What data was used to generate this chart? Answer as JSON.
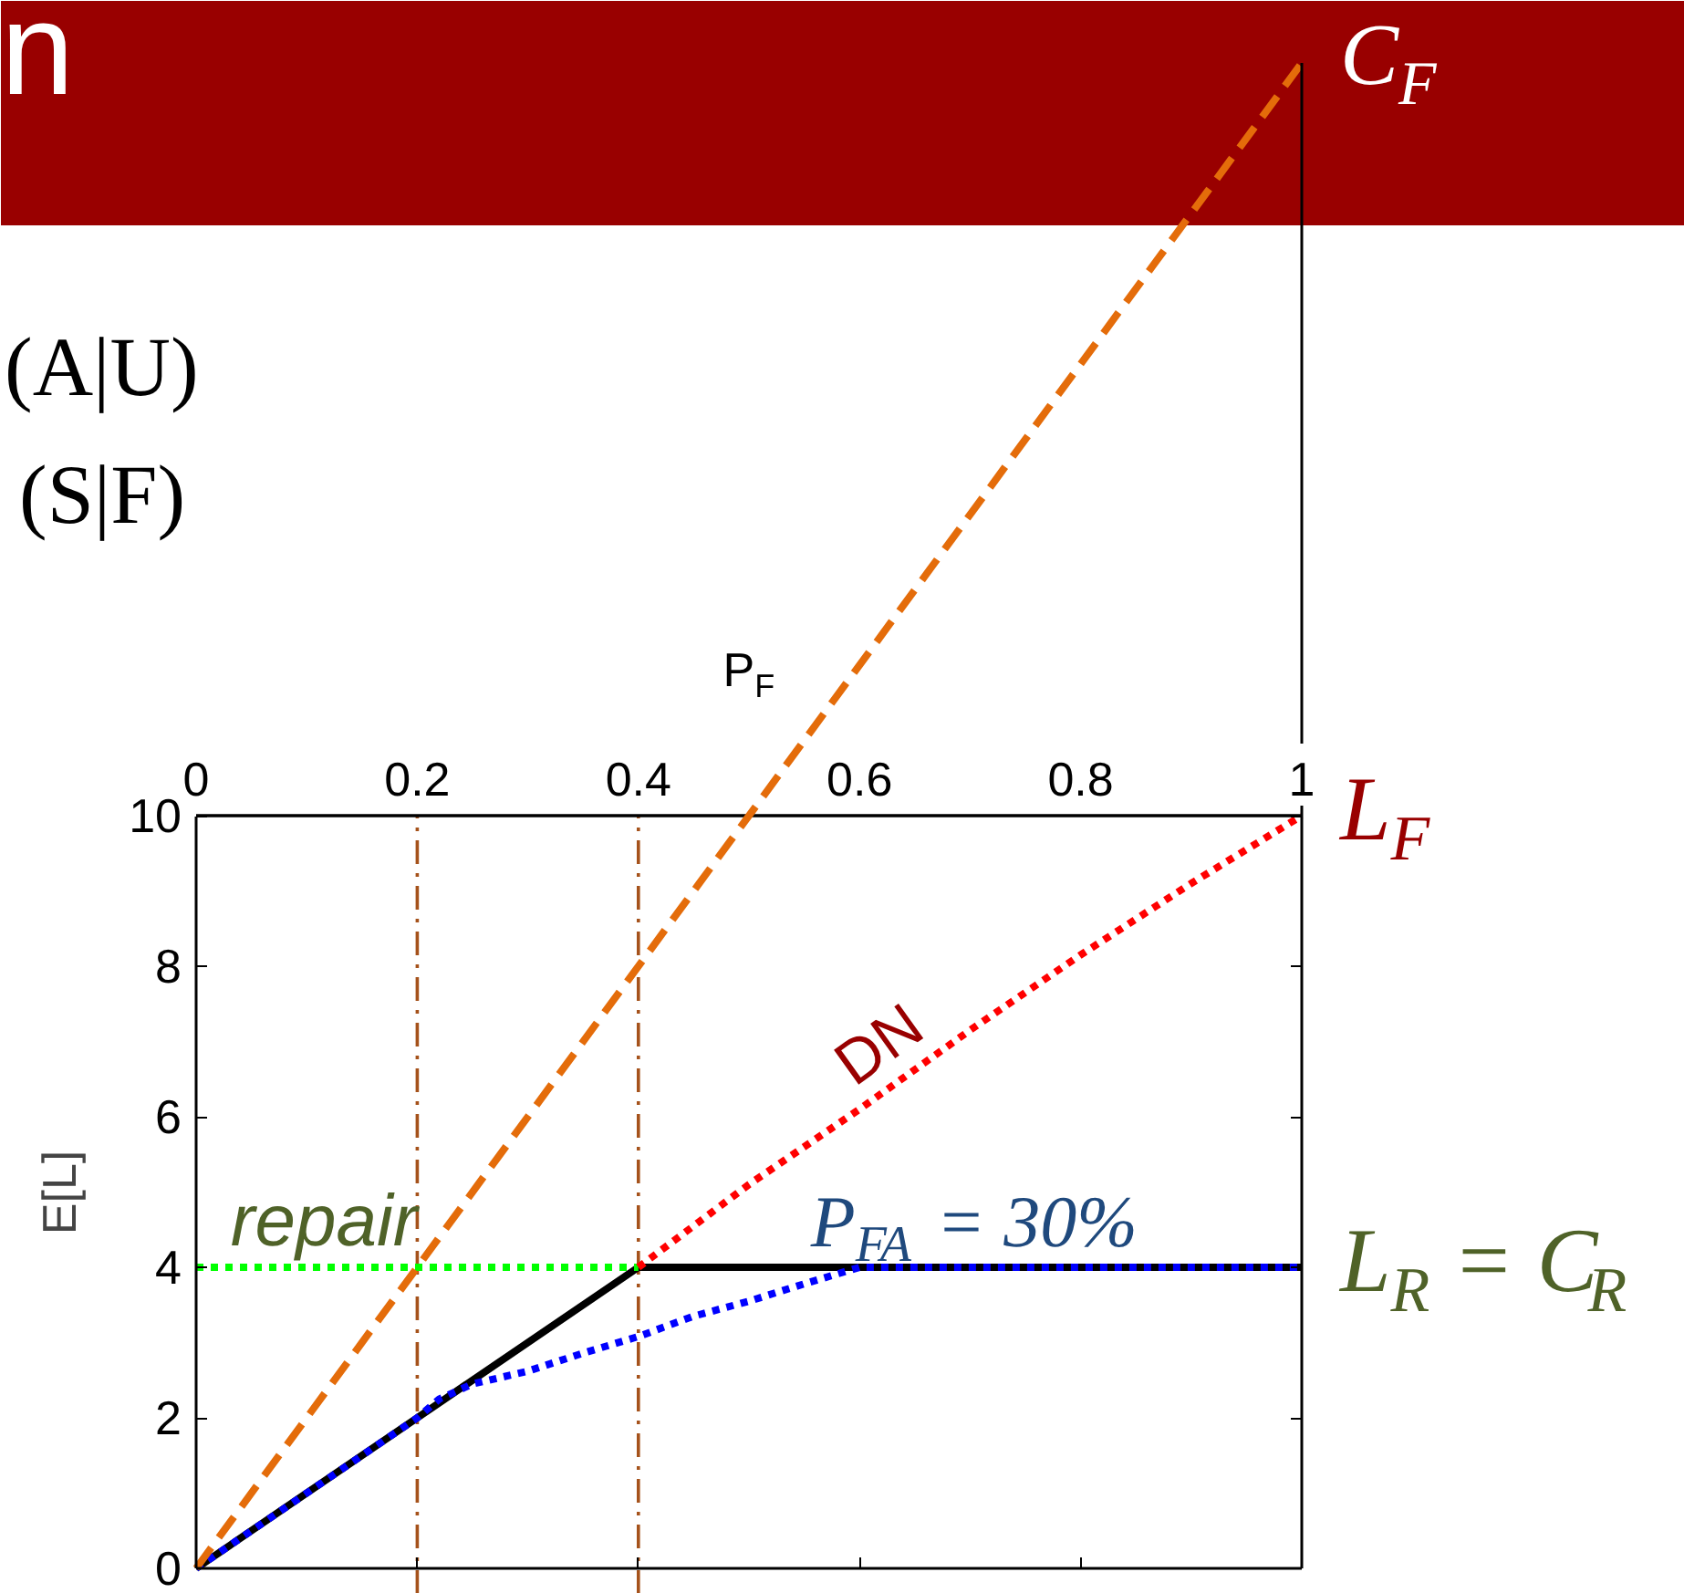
{
  "chart_data": {
    "type": "line",
    "title": "n",
    "xlabel": "P$_{F}$",
    "ylabel": "E[L]",
    "xlim": [
      0,
      1
    ],
    "ylim": [
      0,
      20
    ],
    "xticks": [
      0,
      0.2,
      0.4,
      0.6,
      0.8,
      1
    ],
    "yticks": [
      0,
      2,
      4,
      6,
      8,
      10
    ],
    "grid": false,
    "series": [
      {
        "color": "#000000",
        "line_style": "solid",
        "x": [
          0,
          0.4,
          1
        ],
        "values": [
          0,
          4,
          4
        ]
      },
      {
        "color": "#00ff00",
        "line_style": "dotted",
        "x": [
          0,
          0.4
        ],
        "values": [
          4,
          4
        ]
      },
      {
        "color": "#ff0000",
        "line_style": "dotted",
        "x": [
          0.4,
          0.5,
          0.6,
          0.7,
          0.8,
          0.9,
          1
        ],
        "values": [
          4,
          5.1,
          6.1,
          7.15,
          8.15,
          9.1,
          10
        ]
      },
      {
        "color": "#0000ff",
        "line_style": "dotted",
        "x": [
          0,
          0.2,
          0.22,
          0.25,
          0.3,
          0.35,
          0.4,
          0.45,
          0.5,
          0.55,
          0.6,
          1
        ],
        "values": [
          0,
          2,
          2.25,
          2.45,
          2.62,
          2.86,
          3.08,
          3.35,
          3.55,
          3.78,
          4,
          4
        ]
      },
      {
        "color": "#e46c0a",
        "line_style": "dashed",
        "x": [
          0,
          1
        ],
        "values": [
          0,
          20
        ]
      }
    ],
    "ref_lines": [
      {
        "axis": "x",
        "value": 0.2,
        "color": "#a5521b",
        "line_style": "dashdot"
      },
      {
        "axis": "x",
        "value": 0.4,
        "color": "#a5521b",
        "line_style": "dashdot"
      },
      {
        "axis": "y",
        "value": 10,
        "color": "#000000",
        "line_style": "solid"
      }
    ],
    "annotations": [
      "(A|U)",
      "(S|F)",
      {
        "text": "C$_{F}$",
        "x": 1,
        "y": 20
      },
      {
        "text": "L$_{F}$",
        "x": 1,
        "y": 10
      },
      {
        "text": "L$_{R}$ = C$_{R}$",
        "x": 1,
        "y": 4
      },
      {
        "text": "repair",
        "x": 0.11,
        "y": 4
      },
      {
        "text": "DN",
        "x": 0.64,
        "y": 6.5
      },
      {
        "text": "P$_{FA}$ = 30%",
        "x": 0.7,
        "y": 4
      }
    ]
  }
}
